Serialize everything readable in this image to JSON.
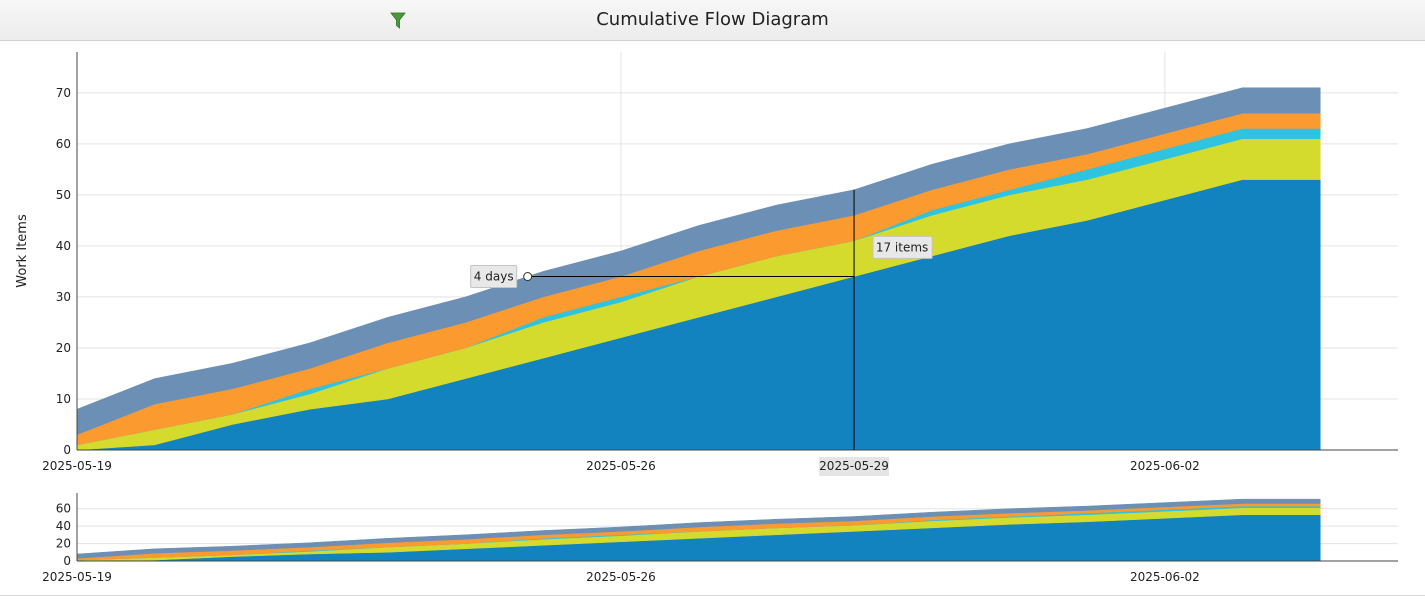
{
  "header": {
    "title": "Cumulative Flow Diagram",
    "filter_icon": "funnel-icon"
  },
  "chart_data": {
    "type": "area",
    "stacked": true,
    "title": "Cumulative Flow Diagram",
    "xlabel": "",
    "ylabel": "Work Items",
    "xlim": [
      "2025-05-19",
      "2025-06-05"
    ],
    "ylim": [
      0,
      78
    ],
    "yticks": [
      0,
      10,
      20,
      30,
      40,
      50,
      60,
      70
    ],
    "xtick_labels": [
      "2025-05-19",
      "2025-05-26",
      "2025-06-02"
    ],
    "grid": true,
    "legend": "none",
    "x": [
      "2025-05-19",
      "2025-05-20",
      "2025-05-21",
      "2025-05-22",
      "2025-05-23",
      "2025-05-24",
      "2025-05-25",
      "2025-05-26",
      "2025-05-27",
      "2025-05-28",
      "2025-05-29",
      "2025-05-30",
      "2025-05-31",
      "2025-06-01",
      "2025-06-02",
      "2025-06-03",
      "2025-06-04"
    ],
    "series": [
      {
        "color": "#1283be",
        "values": [
          0,
          1,
          5,
          8,
          10,
          14,
          18,
          22,
          26,
          30,
          34,
          38,
          42,
          45,
          49,
          53,
          53
        ]
      },
      {
        "color": "#d5db2d",
        "values": [
          1,
          3,
          2,
          3,
          6,
          6,
          7,
          7,
          8,
          8,
          7,
          8,
          8,
          8,
          8,
          8,
          8
        ]
      },
      {
        "color": "#2ec3de",
        "values": [
          0,
          0,
          0,
          1,
          0,
          0,
          1,
          1,
          0,
          0,
          0,
          1,
          1,
          2,
          2,
          2,
          2
        ]
      },
      {
        "color": "#fb9a2f",
        "values": [
          2,
          5,
          5,
          4,
          5,
          5,
          4,
          4,
          5,
          5,
          5,
          4,
          4,
          3,
          3,
          3,
          3
        ]
      },
      {
        "color": "#6c8fb6",
        "values": [
          5,
          5,
          5,
          5,
          5,
          5,
          5,
          5,
          5,
          5,
          5,
          5,
          5,
          5,
          5,
          5,
          5
        ]
      }
    ],
    "crosshair": {
      "date": "2025-05-29",
      "horizontal_label": "4 days",
      "vertical_label": "17 items"
    },
    "navigator": {
      "yticks": [
        0,
        20,
        40,
        60
      ],
      "xtick_labels": [
        "2025-05-19",
        "2025-05-26",
        "2025-06-02"
      ]
    }
  }
}
